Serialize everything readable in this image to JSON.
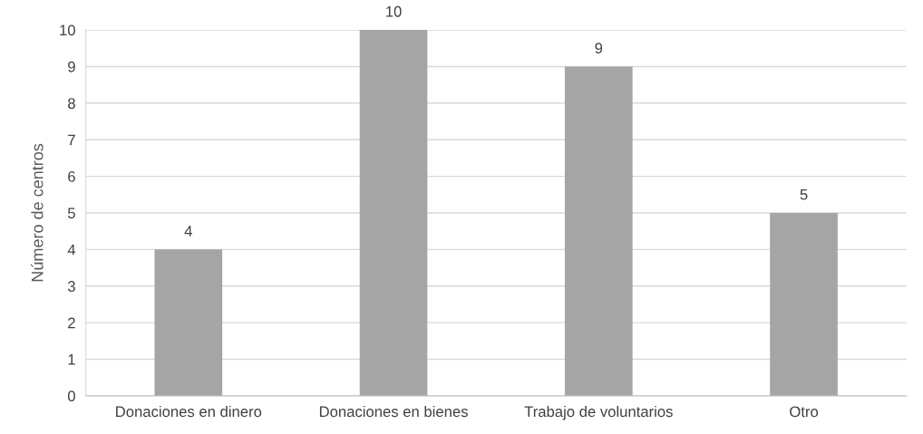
{
  "chart_data": {
    "type": "bar",
    "ylabel": "Número de centros",
    "categories": [
      "Donaciones en dinero",
      "Donaciones en bienes",
      "Trabajo de voluntarios",
      "Otro"
    ],
    "values": [
      4,
      10,
      9,
      5
    ],
    "color": "#a5a5a5",
    "ylim": [
      0,
      10
    ],
    "yticks": [
      0,
      1,
      2,
      3,
      4,
      5,
      6,
      7,
      8,
      9,
      10
    ],
    "grid": "y",
    "data_labels": true,
    "legend": false
  }
}
